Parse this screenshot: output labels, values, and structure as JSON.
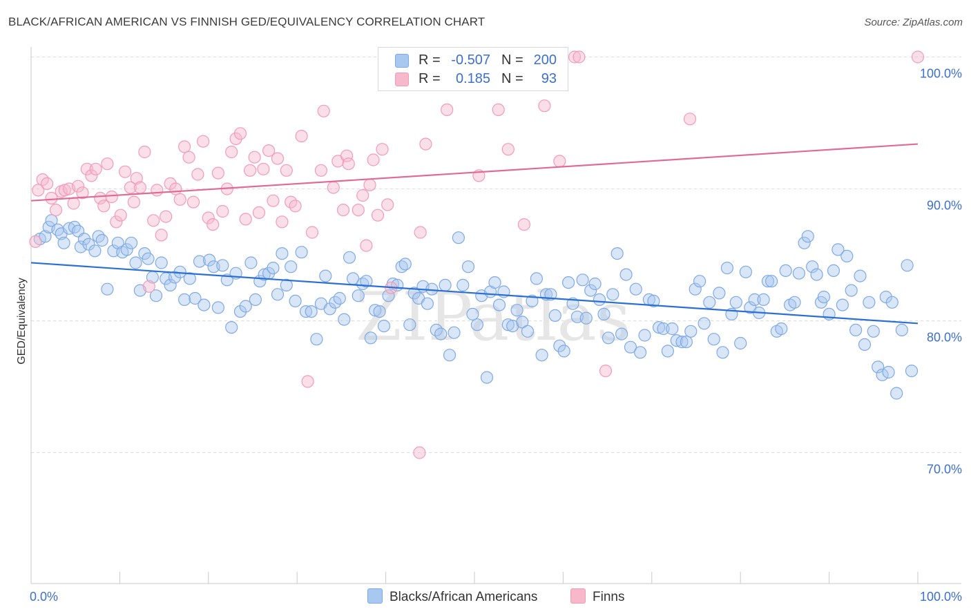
{
  "title": "BLACK/AFRICAN AMERICAN VS FINNISH GED/EQUIVALENCY CORRELATION CHART",
  "source": "Source: ZipAtlas.com",
  "watermark": "ZIPatlas",
  "legend": {
    "rows": [
      {
        "r_label": "R =",
        "r_value": "-0.507",
        "n_label": "N =",
        "n_value": "200",
        "color": "#a9c8f0"
      },
      {
        "r_label": "R =",
        "r_value": "0.185",
        "n_label": "N =",
        "n_value": "93",
        "color": "#f7b8cb"
      }
    ]
  },
  "bottom_legend": [
    {
      "label": "Blacks/African Americans",
      "color": "#a9c8f0"
    },
    {
      "label": "Finns",
      "color": "#f7b8cb"
    }
  ],
  "chart_data": {
    "type": "scatter",
    "title": "BLACK/AFRICAN AMERICAN VS FINNISH GED/EQUIVALENCY CORRELATION CHART",
    "ylabel": "GED/Equivalency",
    "xlabel": "",
    "xlim": [
      0,
      100
    ],
    "ylim": [
      60.5,
      101.5
    ],
    "x_tick_labels": [
      "0.0%",
      "100.0%"
    ],
    "y_ticks": [
      70,
      80,
      90,
      100
    ],
    "y_tick_labels": [
      "70.0%",
      "80.0%",
      "90.0%",
      "100.0%"
    ],
    "grid": "horizontal dashed",
    "series": [
      {
        "name": "Blacks/African Americans",
        "color": "#7fa9e6",
        "fill": "#a9c8f0",
        "trend": {
          "x": [
            0,
            100
          ],
          "y": [
            84.4,
            79.8
          ],
          "color": "#2a6fd6"
        },
        "points": [
          [
            1,
            86.2
          ],
          [
            1.6,
            86.4
          ],
          [
            2,
            87.1
          ],
          [
            2.3,
            87.6
          ],
          [
            3,
            86.9
          ],
          [
            3.4,
            86.6
          ],
          [
            3.7,
            85.9
          ],
          [
            4.3,
            87.0
          ],
          [
            4.9,
            87.1
          ],
          [
            5.3,
            86.8
          ],
          [
            5.6,
            85.6
          ],
          [
            6,
            86.2
          ],
          [
            6.5,
            85.8
          ],
          [
            7.2,
            85.3
          ],
          [
            7.6,
            86.4
          ],
          [
            8,
            86.1
          ],
          [
            8.6,
            82.4
          ],
          [
            9.3,
            85.3
          ],
          [
            9.8,
            85.9
          ],
          [
            10.3,
            85.2
          ],
          [
            10.8,
            85.4
          ],
          [
            11.3,
            85.9
          ],
          [
            11.8,
            84.4
          ],
          [
            12.3,
            82.3
          ],
          [
            12.8,
            85.1
          ],
          [
            13.2,
            84.7
          ],
          [
            13.7,
            83.3
          ],
          [
            14.1,
            81.9
          ],
          [
            14.7,
            84.4
          ],
          [
            15.2,
            83.2
          ],
          [
            15.7,
            82.7
          ],
          [
            16.2,
            83.3
          ],
          [
            16.8,
            83.7
          ],
          [
            17.3,
            81.6
          ],
          [
            17.9,
            83.2
          ],
          [
            18.5,
            81.7
          ],
          [
            19,
            84.5
          ],
          [
            19.5,
            81.2
          ],
          [
            20.1,
            84.6
          ],
          [
            20.6,
            84.1
          ],
          [
            21.1,
            81.0
          ],
          [
            21.6,
            84.2
          ],
          [
            22.1,
            83.1
          ],
          [
            22.6,
            79.5
          ],
          [
            23.1,
            83.6
          ],
          [
            23.6,
            80.7
          ],
          [
            24.2,
            81.1
          ],
          [
            24.8,
            84.4
          ],
          [
            25.3,
            81.6
          ],
          [
            25.8,
            83.0
          ],
          [
            26.3,
            83.5
          ],
          [
            26.8,
            83.6
          ],
          [
            27.3,
            84.0
          ],
          [
            27.8,
            82.0
          ],
          [
            28.3,
            85.1
          ],
          [
            28.8,
            82.7
          ],
          [
            29.3,
            84.1
          ],
          [
            29.8,
            81.5
          ],
          [
            30.5,
            85.2
          ],
          [
            31,
            80.7
          ],
          [
            31.6,
            80.7
          ],
          [
            32.2,
            78.6
          ],
          [
            32.7,
            81.3
          ],
          [
            33.2,
            83.4
          ],
          [
            33.7,
            80.9
          ],
          [
            34.3,
            81.4
          ],
          [
            34.8,
            81.7
          ],
          [
            35.3,
            80.1
          ],
          [
            35.9,
            84.8
          ],
          [
            36.3,
            83.2
          ],
          [
            36.9,
            81.9
          ],
          [
            37.4,
            82.8
          ],
          [
            37.8,
            83.0
          ],
          [
            38.3,
            78.7
          ],
          [
            38.8,
            80.8
          ],
          [
            39.3,
            80.7
          ],
          [
            39.8,
            79.6
          ],
          [
            40.3,
            81.9
          ],
          [
            40.8,
            82.8
          ],
          [
            41.3,
            82.7
          ],
          [
            41.8,
            84.1
          ],
          [
            42.2,
            84.3
          ],
          [
            42.7,
            79.7
          ],
          [
            43.2,
            82.1
          ],
          [
            43.7,
            81.7
          ],
          [
            44.2,
            82.6
          ],
          [
            44.7,
            81.3
          ],
          [
            45.2,
            82.4
          ],
          [
            45.7,
            79.3
          ],
          [
            46.2,
            79.0
          ],
          [
            46.7,
            82.7
          ],
          [
            47.2,
            77.4
          ],
          [
            47.7,
            79.1
          ],
          [
            48.2,
            86.3
          ],
          [
            48.7,
            82.7
          ],
          [
            49.3,
            84.1
          ],
          [
            49.8,
            80.5
          ],
          [
            50.3,
            79.7
          ],
          [
            50.8,
            81.9
          ],
          [
            51.4,
            75.7
          ],
          [
            51.8,
            82.2
          ],
          [
            52.3,
            82.9
          ],
          [
            52.8,
            81.2
          ],
          [
            53.3,
            82.2
          ],
          [
            53.8,
            79.7
          ],
          [
            54.3,
            79.6
          ],
          [
            54.8,
            80.8
          ],
          [
            55.4,
            79.9
          ],
          [
            56,
            79.2
          ],
          [
            56.5,
            81.5
          ],
          [
            57,
            83.2
          ],
          [
            57.6,
            77.4
          ],
          [
            58.1,
            82.0
          ],
          [
            58.6,
            82.0
          ],
          [
            59.1,
            80.4
          ],
          [
            59.6,
            78.1
          ],
          [
            60.1,
            77.7
          ],
          [
            60.6,
            82.9
          ],
          [
            61.1,
            81.3
          ],
          [
            61.6,
            80.3
          ],
          [
            62.2,
            83.1
          ],
          [
            62.6,
            80.2
          ],
          [
            63.1,
            82.3
          ],
          [
            63.6,
            82.8
          ],
          [
            64.1,
            81.6
          ],
          [
            64.6,
            80.5
          ],
          [
            65.1,
            78.7
          ],
          [
            65.6,
            82.0
          ],
          [
            66.1,
            85.1
          ],
          [
            66.6,
            79.0
          ],
          [
            67.1,
            83.5
          ],
          [
            67.6,
            78.0
          ],
          [
            68.2,
            82.4
          ],
          [
            68.7,
            77.6
          ],
          [
            69.2,
            78.9
          ],
          [
            69.7,
            81.6
          ],
          [
            70.2,
            81.5
          ],
          [
            70.8,
            79.5
          ],
          [
            71.3,
            79.4
          ],
          [
            71.8,
            77.7
          ],
          [
            72.3,
            79.4
          ],
          [
            72.8,
            78.5
          ],
          [
            73.4,
            78.4
          ],
          [
            73.9,
            78.4
          ],
          [
            74.4,
            79.2
          ],
          [
            74.9,
            82.4
          ],
          [
            75.4,
            83.0
          ],
          [
            75.9,
            79.8
          ],
          [
            76.5,
            81.4
          ],
          [
            77,
            78.6
          ],
          [
            77.6,
            82.1
          ],
          [
            78,
            77.6
          ],
          [
            78.5,
            84.0
          ],
          [
            79,
            80.5
          ],
          [
            79.5,
            81.4
          ],
          [
            80,
            78.3
          ],
          [
            80.6,
            83.7
          ],
          [
            81.1,
            81.0
          ],
          [
            81.6,
            81.6
          ],
          [
            82.1,
            80.6
          ],
          [
            82.6,
            81.6
          ],
          [
            83.1,
            83.0
          ],
          [
            83.5,
            83.0
          ],
          [
            84.1,
            79.2
          ],
          [
            84.6,
            79.4
          ],
          [
            85.1,
            83.8
          ],
          [
            85.6,
            81.2
          ],
          [
            86.1,
            81.4
          ],
          [
            86.6,
            83.6
          ],
          [
            87.2,
            85.9
          ],
          [
            87.6,
            86.4
          ],
          [
            88.1,
            84.1
          ],
          [
            88.6,
            83.5
          ],
          [
            89.1,
            81.4
          ],
          [
            89.4,
            81.8
          ],
          [
            90,
            80.5
          ],
          [
            90.5,
            83.8
          ],
          [
            91,
            85.4
          ],
          [
            91.5,
            81.2
          ],
          [
            92,
            84.9
          ],
          [
            92.5,
            82.3
          ],
          [
            93,
            79.3
          ],
          [
            93.5,
            83.4
          ],
          [
            94,
            78.2
          ],
          [
            94.5,
            81.4
          ],
          [
            95,
            79.2
          ],
          [
            95.5,
            76.5
          ],
          [
            96,
            75.9
          ],
          [
            96.4,
            81.8
          ],
          [
            96.7,
            76.1
          ],
          [
            97.1,
            81.4
          ],
          [
            97.6,
            74.5
          ],
          [
            98.2,
            79.3
          ],
          [
            98.8,
            84.2
          ],
          [
            99.3,
            76.2
          ]
        ]
      },
      {
        "name": "Finns",
        "color": "#f29bb6",
        "fill": "#f7b8cb",
        "trend": {
          "x": [
            0,
            100
          ],
          "y": [
            89.1,
            93.4
          ],
          "color": "#e06a95"
        },
        "points": [
          [
            0.5,
            86.0
          ],
          [
            0.8,
            89.9
          ],
          [
            1.3,
            90.7
          ],
          [
            1.8,
            90.4
          ],
          [
            2.3,
            89.3
          ],
          [
            2.8,
            88.4
          ],
          [
            3.4,
            89.8
          ],
          [
            3.8,
            89.9
          ],
          [
            4.3,
            90.0
          ],
          [
            4.8,
            88.9
          ],
          [
            5.3,
            90.2
          ],
          [
            5.8,
            89.7
          ],
          [
            6.3,
            91.5
          ],
          [
            6.8,
            91.0
          ],
          [
            7.3,
            91.5
          ],
          [
            7.8,
            89.3
          ],
          [
            8.2,
            88.7
          ],
          [
            8.6,
            91.9
          ],
          [
            9.1,
            89.4
          ],
          [
            9.6,
            87.5
          ],
          [
            10.1,
            88.0
          ],
          [
            10.6,
            91.3
          ],
          [
            11.2,
            90.1
          ],
          [
            11.6,
            89.0
          ],
          [
            11.9,
            90.8
          ],
          [
            12.3,
            90.1
          ],
          [
            12.8,
            92.8
          ],
          [
            13.3,
            82.6
          ],
          [
            13.8,
            87.6
          ],
          [
            14.2,
            89.9
          ],
          [
            14.7,
            86.5
          ],
          [
            15.2,
            87.9
          ],
          [
            15.7,
            90.4
          ],
          [
            16.3,
            90.0
          ],
          [
            16.8,
            89.2
          ],
          [
            17.3,
            93.2
          ],
          [
            17.8,
            92.4
          ],
          [
            18.3,
            89.0
          ],
          [
            18.8,
            91.1
          ],
          [
            19.4,
            93.6
          ],
          [
            20,
            87.8
          ],
          [
            20.5,
            87.3
          ],
          [
            21.1,
            91.2
          ],
          [
            21.6,
            88.3
          ],
          [
            22.1,
            90.0
          ],
          [
            22.6,
            92.8
          ],
          [
            23.1,
            93.8
          ],
          [
            23.6,
            94.2
          ],
          [
            24.2,
            87.7
          ],
          [
            24.7,
            91.4
          ],
          [
            25.2,
            92.4
          ],
          [
            25.7,
            88.2
          ],
          [
            26.2,
            91.5
          ],
          [
            26.8,
            92.9
          ],
          [
            27.3,
            89.1
          ],
          [
            27.8,
            92.3
          ],
          [
            28.3,
            87.5
          ],
          [
            28.8,
            91.4
          ],
          [
            29.3,
            89.0
          ],
          [
            29.8,
            88.7
          ],
          [
            30.5,
            94.0
          ],
          [
            31.2,
            75.4
          ],
          [
            31.7,
            86.7
          ],
          [
            32.7,
            91.4
          ],
          [
            33,
            95.9
          ],
          [
            34.1,
            90.1
          ],
          [
            34.6,
            92.1
          ],
          [
            35.2,
            88.4
          ],
          [
            35.6,
            92.5
          ],
          [
            35.8,
            91.9
          ],
          [
            36.9,
            88.4
          ],
          [
            37.4,
            89.5
          ],
          [
            37.8,
            85.7
          ],
          [
            38.2,
            90.3
          ],
          [
            38.6,
            92.2
          ],
          [
            39.1,
            88.0
          ],
          [
            39.6,
            93.0
          ],
          [
            40.2,
            88.8
          ],
          [
            40.6,
            82.5
          ],
          [
            43.8,
            70.0
          ],
          [
            43.9,
            86.7
          ],
          [
            44.5,
            93.4
          ],
          [
            46.9,
            96.0
          ],
          [
            50.5,
            91.0
          ],
          [
            52.7,
            96.0
          ],
          [
            53.8,
            93.0
          ],
          [
            55.6,
            87.3
          ],
          [
            57.9,
            96.3
          ],
          [
            59.6,
            92.1
          ],
          [
            61.3,
            100.0
          ],
          [
            61.8,
            100.0
          ],
          [
            64.8,
            76.2
          ],
          [
            74.3,
            95.3
          ],
          [
            100,
            100.0
          ]
        ]
      }
    ]
  }
}
